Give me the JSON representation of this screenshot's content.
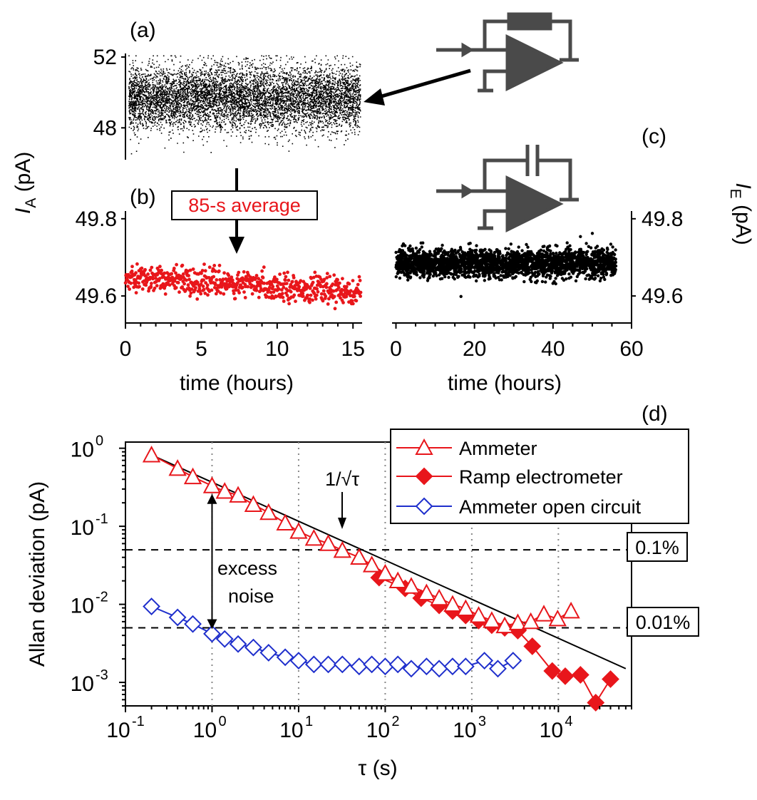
{
  "panel_labels": {
    "a": "(a)",
    "b": "(b)",
    "c": "(c)",
    "d": "(d)"
  },
  "top_axes": {
    "ylabel_main": "I",
    "ylabel_sub": "A",
    "ylabel_unit": " (pA)",
    "ylabel_right_main": "I",
    "ylabel_right_sub": "E",
    "ylabel_right_unit": " (pA)",
    "xlabel_left": "time (hours)",
    "xlabel_right": "time (hours)",
    "average_label": "85-s average"
  },
  "colors": {
    "ammeter": "#e8161b",
    "ramp": "#e8161b",
    "open_circuit": "#1f2fcc",
    "raw": "#000000",
    "schematic": "#4a4a4a"
  },
  "chart_data": [
    {
      "id": "a",
      "type": "scatter",
      "title": "(a)",
      "description_series": "raw ammeter current",
      "x_range": [
        0,
        15.5
      ],
      "ylim": [
        46.2,
        52.2
      ],
      "yticks": [
        48,
        52
      ],
      "ytick_labels": [
        "48",
        "52"
      ],
      "y_mean": 49.7,
      "y_spread": 0.9,
      "n_points": 7000,
      "ylabel": "I_A (pA)"
    },
    {
      "id": "b",
      "type": "scatter",
      "title": "(b)",
      "x_range": [
        0,
        15.5
      ],
      "xlim": [
        0,
        15.6
      ],
      "xticks": [
        0,
        5,
        10,
        15
      ],
      "xtick_labels": [
        "0",
        "5",
        "10",
        "15"
      ],
      "ylim": [
        49.53,
        49.82
      ],
      "yticks": [
        49.6,
        49.8
      ],
      "ytick_labels": [
        "49.6",
        "49.8"
      ],
      "y_mean_start": 49.65,
      "y_mean_end": 49.61,
      "y_spread": 0.028,
      "n_points": 660,
      "annotation": "85-s average",
      "xlabel": "time (hours)"
    },
    {
      "id": "c",
      "type": "scatter",
      "title": "(c)",
      "x_range": [
        0,
        56
      ],
      "xlim": [
        -1,
        60
      ],
      "xticks": [
        0,
        20,
        40,
        60
      ],
      "xtick_labels": [
        "0",
        "20",
        "40",
        "60"
      ],
      "ylim": [
        49.53,
        49.82
      ],
      "yticks": [
        49.6,
        49.8
      ],
      "ytick_labels": [
        "49.6",
        "49.8"
      ],
      "y_mean": 49.685,
      "y_spread": 0.018,
      "n_points": 2370,
      "xlabel": "time (hours)",
      "ylabel": "I_E (pA)"
    },
    {
      "id": "d",
      "type": "line",
      "title": "(d)",
      "xscale": "log",
      "yscale": "log",
      "xlim": [
        0.1,
        70000
      ],
      "ylim": [
        0.0005,
        1.2
      ],
      "xlabel": "τ (s)",
      "ylabel": "Allan deviation (pA)",
      "xtick_exponents": [
        -1,
        0,
        1,
        2,
        3,
        4
      ],
      "ytick_exponents": [
        -3,
        -2,
        -1,
        0
      ],
      "series": [
        {
          "name": "Ammeter",
          "marker": "open-triangle",
          "color": "#e8161b",
          "x": [
            0.2,
            0.4,
            0.6,
            1.0,
            1.4,
            2.0,
            3.0,
            4.5,
            7.0,
            10,
            15,
            22,
            32,
            50,
            70,
            100,
            140,
            200,
            300,
            420,
            600,
            850,
            1200,
            1700,
            2400,
            3400,
            4800,
            6800,
            9800,
            14000
          ],
          "y": [
            0.82,
            0.55,
            0.43,
            0.33,
            0.28,
            0.25,
            0.19,
            0.15,
            0.11,
            0.086,
            0.07,
            0.06,
            0.049,
            0.04,
            0.032,
            0.025,
            0.02,
            0.017,
            0.014,
            0.012,
            0.01,
            0.0088,
            0.0072,
            0.0062,
            0.0053,
            0.0058,
            0.006,
            0.0075,
            0.0065,
            0.0082
          ]
        },
        {
          "name": "Ramp electrometer",
          "marker": "filled-diamond",
          "color": "#e8161b",
          "x": [
            85,
            170,
            260,
            420,
            600,
            850,
            1200,
            1700,
            2400,
            3400,
            5000,
            8500,
            12000,
            18000,
            27000,
            40000
          ],
          "y": [
            0.022,
            0.016,
            0.012,
            0.0097,
            0.0082,
            0.0072,
            0.0062,
            0.0054,
            0.005,
            0.0046,
            0.0029,
            0.0014,
            0.0012,
            0.00125,
            0.00055,
            0.0011
          ]
        },
        {
          "name": "Ammeter open circuit",
          "marker": "open-diamond",
          "color": "#1f2fcc",
          "x": [
            0.2,
            0.4,
            0.6,
            1.0,
            1.4,
            2.0,
            3.0,
            4.5,
            7.0,
            10,
            15,
            22,
            32,
            50,
            70,
            100,
            140,
            200,
            300,
            420,
            600,
            850,
            1400,
            2000,
            3000
          ],
          "y": [
            0.0094,
            0.0068,
            0.0056,
            0.0042,
            0.0036,
            0.0031,
            0.0028,
            0.0024,
            0.0021,
            0.0019,
            0.0017,
            0.0017,
            0.0017,
            0.0016,
            0.0017,
            0.0016,
            0.0017,
            0.0015,
            0.0016,
            0.0015,
            0.0016,
            0.0016,
            0.0019,
            0.0015,
            0.0019
          ]
        }
      ],
      "reference_line": {
        "label": "1/√τ",
        "x": [
          0.2,
          60000
        ],
        "y": [
          0.82,
          0.0015
        ]
      },
      "hlines": [
        {
          "y": 0.05,
          "label": "0.1%"
        },
        {
          "y": 0.005,
          "label": "0.01%"
        }
      ],
      "vgrid_x": [
        1,
        10,
        100,
        1000,
        10000
      ],
      "annotation_excess": {
        "line1": "excess",
        "line2": "noise",
        "x": 1.0,
        "y_top": 0.26,
        "y_bottom": 0.0048
      },
      "legend_position": "top-right"
    }
  ]
}
